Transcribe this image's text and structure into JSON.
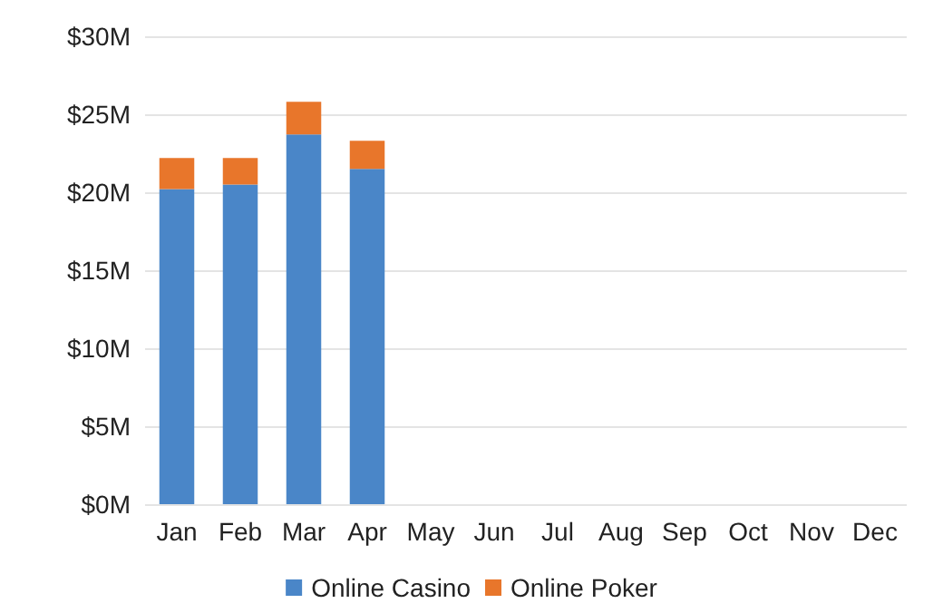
{
  "chart_data": {
    "type": "bar",
    "stacked": true,
    "categories": [
      "Jan",
      "Feb",
      "Mar",
      "Apr",
      "May",
      "Jun",
      "Jul",
      "Aug",
      "Sep",
      "Oct",
      "Nov",
      "Dec"
    ],
    "series": [
      {
        "name": "Online Casino",
        "color": "#4a86c8",
        "values": [
          20.2,
          20.5,
          23.7,
          21.5,
          null,
          null,
          null,
          null,
          null,
          null,
          null,
          null
        ]
      },
      {
        "name": "Online Poker",
        "color": "#e8762b",
        "values": [
          2.0,
          1.7,
          2.1,
          1.8,
          null,
          null,
          null,
          null,
          null,
          null,
          null,
          null
        ]
      }
    ],
    "ylim": [
      0,
      30
    ],
    "yticks": [
      {
        "value": 0,
        "label": "$0M"
      },
      {
        "value": 5,
        "label": "$5M"
      },
      {
        "value": 10,
        "label": "$10M"
      },
      {
        "value": 15,
        "label": "$15M"
      },
      {
        "value": 20,
        "label": "$20M"
      },
      {
        "value": 25,
        "label": "$25M"
      },
      {
        "value": 30,
        "label": "$30M"
      }
    ],
    "grid": "y",
    "legend": "bottom"
  }
}
